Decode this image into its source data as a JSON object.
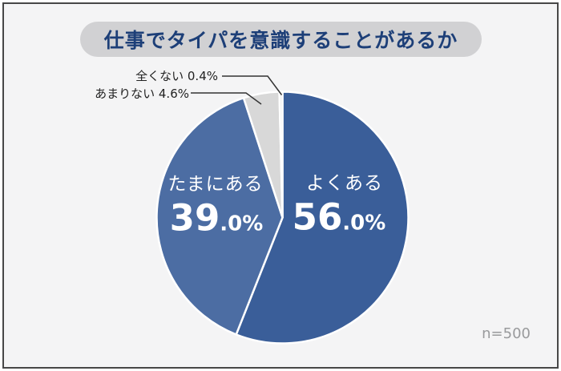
{
  "title": "仕事でタイパを意識することがあるか",
  "colors": {
    "background": "#f4f4f5",
    "frame_border": "#474747",
    "title_pill_bg": "#d1d1d3",
    "title_text": "#1d3f78",
    "leader_line": "#333333",
    "sample_text": "#999a9c",
    "slice_text": "#ffffff"
  },
  "chart_data": {
    "type": "pie",
    "title": "仕事でタイパを意識することがあるか",
    "direction": "clockwise",
    "start_angle_deg": 0,
    "sample_size_label": "n=500",
    "legend_position": "none",
    "slices": [
      {
        "label": "よくある",
        "value": 56.0,
        "value_int": "56",
        "value_frac": ".0%",
        "color": "#3a5e99",
        "label_style": "inside"
      },
      {
        "label": "たまにある",
        "value": 39.0,
        "value_int": "39",
        "value_frac": ".0%",
        "color": "#4c6da3",
        "label_style": "inside"
      },
      {
        "label": "あまりない",
        "value": 4.6,
        "callout_text": "あまりない 4.6%",
        "color": "#d8d8d8",
        "label_style": "callout"
      },
      {
        "label": "全くない",
        "value": 0.4,
        "callout_text": "全くない 0.4%",
        "color": "#ececec",
        "label_style": "callout"
      }
    ]
  }
}
